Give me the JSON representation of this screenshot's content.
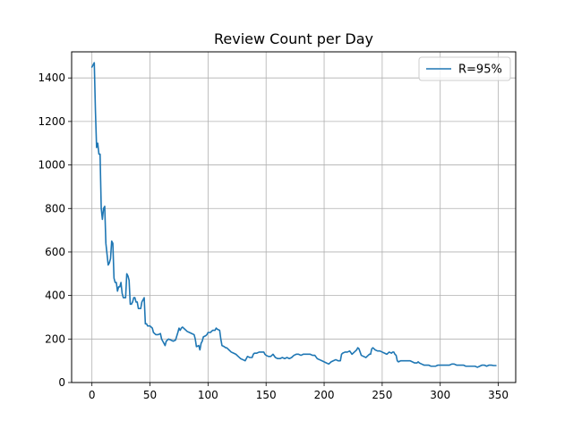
{
  "chart_data": {
    "type": "line",
    "title": "Review Count per Day",
    "xlabel": "",
    "ylabel": "",
    "xlim": [
      -17.5,
      365
    ],
    "ylim": [
      0,
      1520
    ],
    "x_ticks": [
      0,
      50,
      100,
      150,
      200,
      250,
      300,
      350
    ],
    "y_ticks": [
      0,
      200,
      400,
      600,
      800,
      1000,
      1200,
      1400
    ],
    "grid": true,
    "legend": {
      "position": "upper-right"
    },
    "series": [
      {
        "name": "R=95%",
        "color": "#1f77b4",
        "points": [
          [
            0,
            1450
          ],
          [
            1,
            1460
          ],
          [
            2,
            1470
          ],
          [
            3,
            1250
          ],
          [
            4,
            1080
          ],
          [
            5,
            1100
          ],
          [
            6,
            1050
          ],
          [
            7,
            1050
          ],
          [
            8,
            800
          ],
          [
            9,
            750
          ],
          [
            10,
            800
          ],
          [
            11,
            810
          ],
          [
            12,
            640
          ],
          [
            13,
            590
          ],
          [
            14,
            540
          ],
          [
            15,
            550
          ],
          [
            16,
            570
          ],
          [
            17,
            650
          ],
          [
            18,
            640
          ],
          [
            19,
            480
          ],
          [
            20,
            460
          ],
          [
            21,
            460
          ],
          [
            22,
            420
          ],
          [
            23,
            440
          ],
          [
            24,
            440
          ],
          [
            25,
            460
          ],
          [
            26,
            410
          ],
          [
            27,
            390
          ],
          [
            28,
            390
          ],
          [
            29,
            390
          ],
          [
            30,
            500
          ],
          [
            31,
            490
          ],
          [
            32,
            470
          ],
          [
            33,
            360
          ],
          [
            34,
            360
          ],
          [
            35,
            370
          ],
          [
            36,
            390
          ],
          [
            37,
            390
          ],
          [
            38,
            370
          ],
          [
            39,
            370
          ],
          [
            40,
            340
          ],
          [
            41,
            340
          ],
          [
            42,
            340
          ],
          [
            43,
            370
          ],
          [
            44,
            380
          ],
          [
            45,
            390
          ],
          [
            46,
            270
          ],
          [
            47,
            270
          ],
          [
            48,
            260
          ],
          [
            50,
            260
          ],
          [
            52,
            250
          ],
          [
            53,
            230
          ],
          [
            55,
            220
          ],
          [
            57,
            220
          ],
          [
            59,
            225
          ],
          [
            60,
            200
          ],
          [
            62,
            180
          ],
          [
            63,
            170
          ],
          [
            64,
            190
          ],
          [
            66,
            200
          ],
          [
            68,
            195
          ],
          [
            70,
            190
          ],
          [
            72,
            195
          ],
          [
            74,
            230
          ],
          [
            75,
            250
          ],
          [
            76,
            240
          ],
          [
            77,
            250
          ],
          [
            78,
            255
          ],
          [
            80,
            245
          ],
          [
            81,
            240
          ],
          [
            82,
            235
          ],
          [
            84,
            230
          ],
          [
            86,
            225
          ],
          [
            88,
            220
          ],
          [
            89,
            200
          ],
          [
            90,
            165
          ],
          [
            92,
            170
          ],
          [
            93,
            150
          ],
          [
            94,
            180
          ],
          [
            95,
            190
          ],
          [
            96,
            210
          ],
          [
            98,
            215
          ],
          [
            99,
            220
          ],
          [
            100,
            230
          ],
          [
            102,
            230
          ],
          [
            104,
            240
          ],
          [
            106,
            240
          ],
          [
            107,
            250
          ],
          [
            108,
            245
          ],
          [
            110,
            240
          ],
          [
            111,
            200
          ],
          [
            112,
            170
          ],
          [
            114,
            165
          ],
          [
            115,
            160
          ],
          [
            116,
            160
          ],
          [
            118,
            150
          ],
          [
            120,
            140
          ],
          [
            122,
            135
          ],
          [
            124,
            130
          ],
          [
            126,
            120
          ],
          [
            128,
            110
          ],
          [
            130,
            105
          ],
          [
            132,
            100
          ],
          [
            134,
            120
          ],
          [
            136,
            115
          ],
          [
            138,
            115
          ],
          [
            139,
            130
          ],
          [
            140,
            135
          ],
          [
            142,
            135
          ],
          [
            144,
            140
          ],
          [
            146,
            140
          ],
          [
            148,
            140
          ],
          [
            149,
            130
          ],
          [
            150,
            125
          ],
          [
            152,
            120
          ],
          [
            154,
            120
          ],
          [
            156,
            130
          ],
          [
            158,
            115
          ],
          [
            160,
            110
          ],
          [
            162,
            110
          ],
          [
            164,
            115
          ],
          [
            166,
            110
          ],
          [
            168,
            115
          ],
          [
            170,
            110
          ],
          [
            172,
            115
          ],
          [
            174,
            125
          ],
          [
            176,
            130
          ],
          [
            178,
            130
          ],
          [
            180,
            125
          ],
          [
            182,
            130
          ],
          [
            184,
            130
          ],
          [
            186,
            130
          ],
          [
            188,
            130
          ],
          [
            190,
            125
          ],
          [
            192,
            125
          ],
          [
            194,
            110
          ],
          [
            196,
            105
          ],
          [
            198,
            100
          ],
          [
            200,
            95
          ],
          [
            202,
            90
          ],
          [
            204,
            85
          ],
          [
            206,
            95
          ],
          [
            208,
            100
          ],
          [
            210,
            105
          ],
          [
            212,
            100
          ],
          [
            214,
            100
          ],
          [
            215,
            130
          ],
          [
            216,
            135
          ],
          [
            218,
            140
          ],
          [
            220,
            140
          ],
          [
            222,
            145
          ],
          [
            224,
            130
          ],
          [
            226,
            140
          ],
          [
            228,
            150
          ],
          [
            229,
            160
          ],
          [
            230,
            155
          ],
          [
            232,
            125
          ],
          [
            234,
            120
          ],
          [
            236,
            115
          ],
          [
            238,
            125
          ],
          [
            239,
            130
          ],
          [
            240,
            130
          ],
          [
            241,
            155
          ],
          [
            242,
            160
          ],
          [
            244,
            150
          ],
          [
            246,
            145
          ],
          [
            248,
            145
          ],
          [
            250,
            140
          ],
          [
            252,
            135
          ],
          [
            254,
            130
          ],
          [
            256,
            140
          ],
          [
            258,
            135
          ],
          [
            259,
            140
          ],
          [
            260,
            140
          ],
          [
            261,
            130
          ],
          [
            262,
            125
          ],
          [
            263,
            100
          ],
          [
            264,
            95
          ],
          [
            266,
            100
          ],
          [
            268,
            100
          ],
          [
            270,
            100
          ],
          [
            272,
            100
          ],
          [
            274,
            100
          ],
          [
            276,
            95
          ],
          [
            278,
            90
          ],
          [
            280,
            90
          ],
          [
            281,
            95
          ],
          [
            282,
            90
          ],
          [
            284,
            85
          ],
          [
            286,
            80
          ],
          [
            288,
            80
          ],
          [
            290,
            80
          ],
          [
            292,
            75
          ],
          [
            294,
            75
          ],
          [
            296,
            75
          ],
          [
            298,
            80
          ],
          [
            300,
            80
          ],
          [
            302,
            80
          ],
          [
            304,
            80
          ],
          [
            306,
            80
          ],
          [
            308,
            80
          ],
          [
            310,
            85
          ],
          [
            312,
            85
          ],
          [
            314,
            80
          ],
          [
            316,
            80
          ],
          [
            318,
            80
          ],
          [
            320,
            80
          ],
          [
            322,
            75
          ],
          [
            324,
            75
          ],
          [
            326,
            75
          ],
          [
            328,
            75
          ],
          [
            330,
            75
          ],
          [
            332,
            70
          ],
          [
            334,
            75
          ],
          [
            336,
            80
          ],
          [
            338,
            80
          ],
          [
            340,
            75
          ],
          [
            342,
            80
          ],
          [
            344,
            80
          ],
          [
            346,
            78
          ],
          [
            348,
            78
          ]
        ]
      }
    ]
  }
}
